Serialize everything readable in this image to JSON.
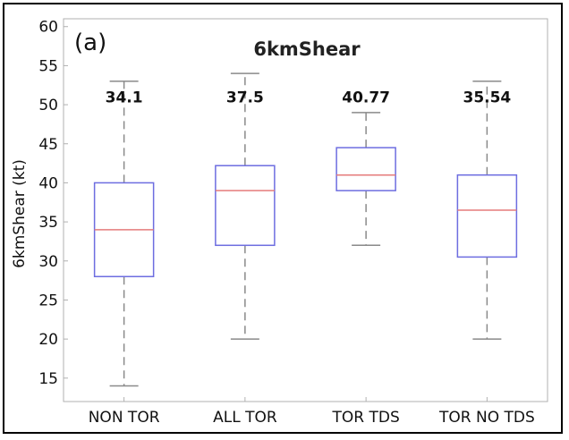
{
  "chart_data": {
    "type": "box",
    "panel_label": "(a)",
    "title": "6kmShear",
    "ylabel": "6kmShear (kt)",
    "xlabel": "",
    "ylim": [
      12,
      61
    ],
    "yticks": [
      15,
      20,
      25,
      30,
      35,
      40,
      45,
      50,
      55,
      60
    ],
    "yticklabels": [
      "15",
      "20",
      "25",
      "30",
      "35",
      "40",
      "45",
      "50",
      "55",
      "60"
    ],
    "grid": false,
    "categories": [
      "NON TOR",
      "ALL TOR",
      "TOR TDS",
      "TOR NO TDS"
    ],
    "boxes": [
      {
        "category": "NON TOR",
        "whisker_low": 14,
        "q1": 28,
        "median": 34,
        "q3": 40,
        "whisker_high": 53,
        "mean_label": "34.1"
      },
      {
        "category": "ALL TOR",
        "whisker_low": 20,
        "q1": 32,
        "median": 39,
        "q3": 42.2,
        "whisker_high": 54,
        "mean_label": "37.5"
      },
      {
        "category": "TOR TDS",
        "whisker_low": 32,
        "q1": 39,
        "median": 41,
        "q3": 44.5,
        "whisker_high": 49,
        "mean_label": "40.77"
      },
      {
        "category": "TOR NO TDS",
        "whisker_low": 20,
        "q1": 30.5,
        "median": 36.5,
        "q3": 41,
        "whisker_high": 53,
        "mean_label": "35.54"
      }
    ],
    "mean_label_y": 51,
    "colors": {
      "box": "#6d6de0",
      "median": "#e57b7b",
      "whisker": "#8a8a8a",
      "axes": "#b0b0b0"
    }
  }
}
